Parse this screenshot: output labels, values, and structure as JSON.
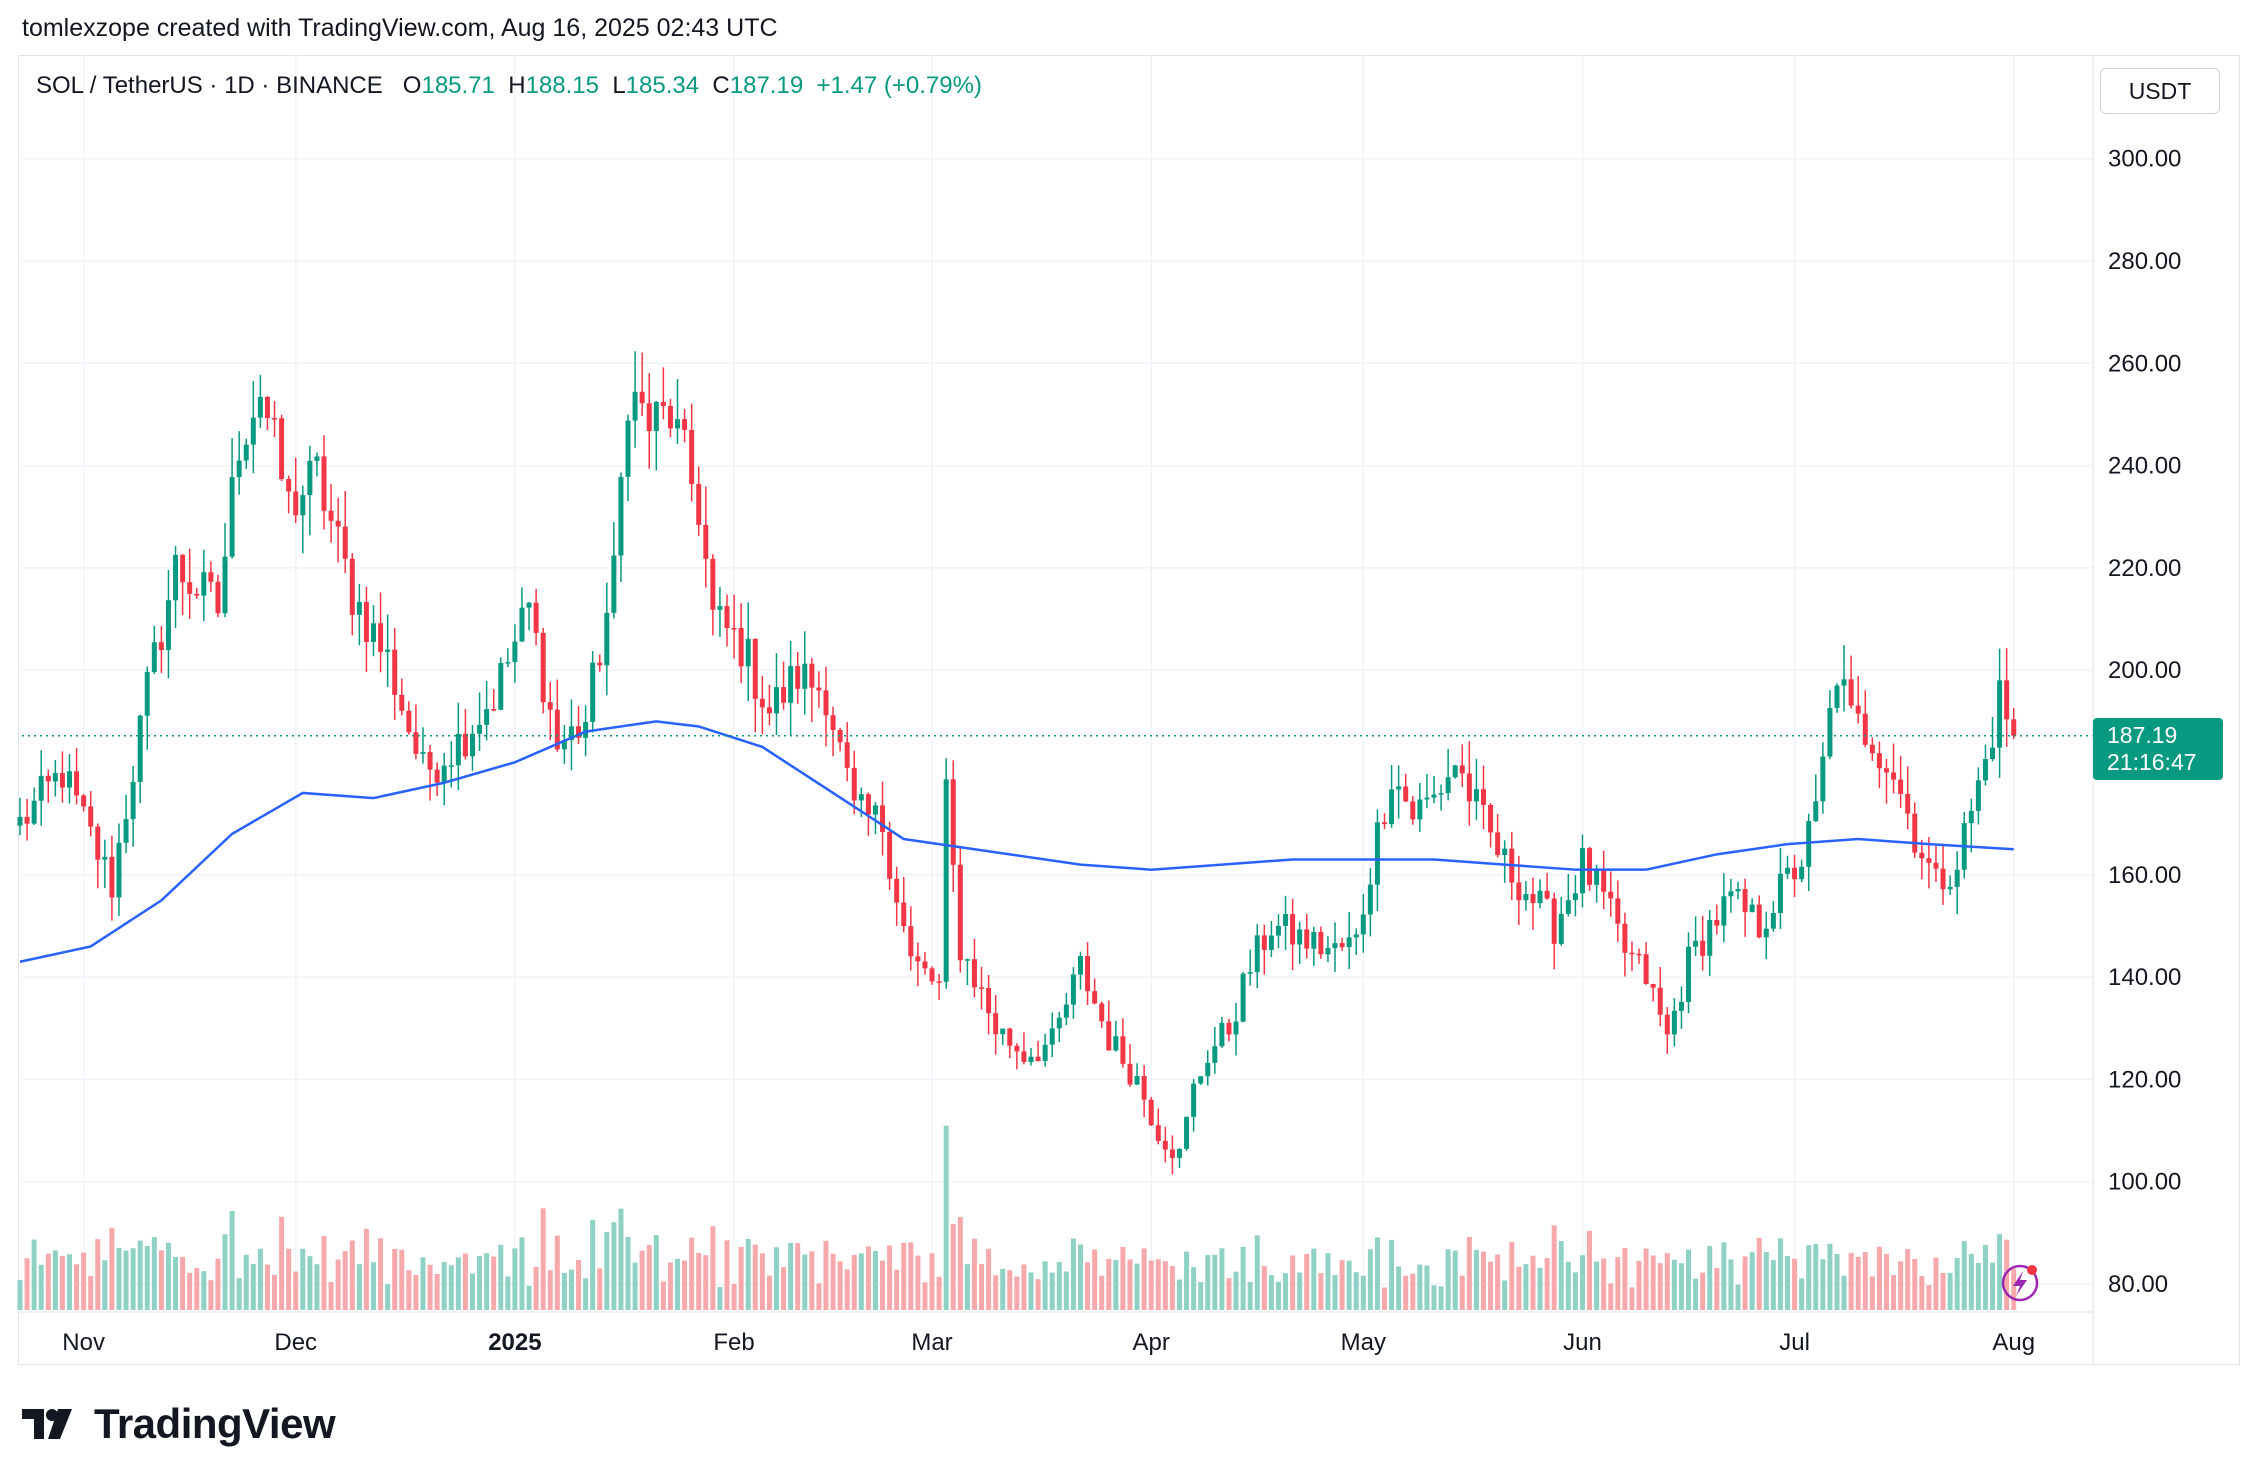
{
  "header_note": "tomlexzope created with TradingView.com, Aug 16, 2025 02:43 UTC",
  "legend": {
    "symbol": "SOL / TetherUS · 1D · BINANCE",
    "open_label": "O",
    "open": "185.71",
    "high_label": "H",
    "high": "188.15",
    "low_label": "L",
    "low": "185.34",
    "close_label": "C",
    "close": "187.19",
    "change": "+1.47 (+0.79%)"
  },
  "currency": "USDT",
  "price_tag": {
    "price": "187.19",
    "countdown": "21:16:47"
  },
  "brand": "TradingView",
  "colors": {
    "up": "#089981",
    "down": "#f23645",
    "ma": "#2962ff",
    "vol_up": "#8fd1c5",
    "vol_down": "#f7a8ab",
    "grid": "#f0f3fa"
  },
  "chart_data": {
    "type": "candlestick",
    "title": "SOL / TetherUS · 1D · BINANCE",
    "ylim": [
      75,
      315
    ],
    "yticks": [
      "300.00",
      "280.00",
      "260.00",
      "240.00",
      "220.00",
      "200.00",
      "160.00",
      "140.00",
      "120.00",
      "100.00",
      "80.00"
    ],
    "ytick_values": [
      300,
      280,
      260,
      240,
      220,
      200,
      160,
      140,
      120,
      100,
      80
    ],
    "xticks": [
      "Nov",
      "Dec",
      "2025",
      "Feb",
      "Mar",
      "Apr",
      "May",
      "Jun",
      "Jul",
      "Aug"
    ],
    "xtick_bold": [
      false,
      false,
      true,
      false,
      false,
      false,
      false,
      false,
      false,
      false
    ],
    "xtick_day_index": [
      9,
      39,
      70,
      101,
      129,
      160,
      190,
      221,
      251,
      282
    ],
    "start_date": "2024-10-23",
    "last_price": 187.19,
    "series": [
      {
        "name": "SOL/USDT daily close (approx.)",
        "close_points": [
          [
            0,
            170
          ],
          [
            6,
            180
          ],
          [
            13,
            158
          ],
          [
            18,
            196
          ],
          [
            22,
            220
          ],
          [
            28,
            212
          ],
          [
            31,
            245
          ],
          [
            34,
            255
          ],
          [
            38,
            232
          ],
          [
            42,
            238
          ],
          [
            47,
            215
          ],
          [
            52,
            202
          ],
          [
            57,
            180
          ],
          [
            62,
            186
          ],
          [
            67,
            195
          ],
          [
            72,
            212
          ],
          [
            76,
            185
          ],
          [
            80,
            190
          ],
          [
            84,
            218
          ],
          [
            86,
            255
          ],
          [
            89,
            248
          ],
          [
            92,
            250
          ],
          [
            96,
            232
          ],
          [
            98,
            210
          ],
          [
            102,
            205
          ],
          [
            106,
            192
          ],
          [
            110,
            199
          ],
          [
            114,
            196
          ],
          [
            118,
            172
          ],
          [
            122,
            170
          ],
          [
            126,
            143
          ],
          [
            130,
            138
          ],
          [
            131,
            175
          ],
          [
            133,
            146
          ],
          [
            135,
            140
          ],
          [
            138,
            130
          ],
          [
            142,
            125
          ],
          [
            146,
            127
          ],
          [
            150,
            142
          ],
          [
            154,
            128
          ],
          [
            158,
            120
          ],
          [
            161,
            110
          ],
          [
            164,
            105
          ],
          [
            166,
            118
          ],
          [
            168,
            125
          ],
          [
            171,
            130
          ],
          [
            174,
            142
          ],
          [
            177,
            150
          ],
          [
            182,
            147
          ],
          [
            186,
            145
          ],
          [
            189,
            147
          ],
          [
            192,
            168
          ],
          [
            194,
            180
          ],
          [
            197,
            172
          ],
          [
            200,
            175
          ],
          [
            203,
            182
          ],
          [
            207,
            170
          ],
          [
            210,
            162
          ],
          [
            213,
            157
          ],
          [
            217,
            150
          ],
          [
            221,
            162
          ],
          [
            224,
            155
          ],
          [
            227,
            145
          ],
          [
            230,
            140
          ],
          [
            233,
            128
          ],
          [
            236,
            143
          ],
          [
            239,
            150
          ],
          [
            242,
            155
          ],
          [
            246,
            150
          ],
          [
            249,
            157
          ],
          [
            252,
            163
          ],
          [
            254,
            172
          ],
          [
            257,
            200
          ],
          [
            259,
            190
          ],
          [
            262,
            187
          ],
          [
            265,
            180
          ],
          [
            268,
            168
          ],
          [
            271,
            158
          ],
          [
            274,
            163
          ],
          [
            278,
            182
          ],
          [
            280,
            195
          ],
          [
            282,
            187
          ]
        ]
      },
      {
        "name": "Moving average",
        "points": [
          [
            0,
            143
          ],
          [
            10,
            146
          ],
          [
            20,
            155
          ],
          [
            30,
            168
          ],
          [
            40,
            176
          ],
          [
            50,
            175
          ],
          [
            60,
            178
          ],
          [
            70,
            182
          ],
          [
            80,
            188
          ],
          [
            90,
            190
          ],
          [
            96,
            189
          ],
          [
            105,
            185
          ],
          [
            115,
            176
          ],
          [
            125,
            167
          ],
          [
            140,
            164
          ],
          [
            150,
            162
          ],
          [
            160,
            161
          ],
          [
            170,
            162
          ],
          [
            180,
            163
          ],
          [
            190,
            163
          ],
          [
            200,
            163
          ],
          [
            210,
            162
          ],
          [
            220,
            161
          ],
          [
            230,
            161
          ],
          [
            240,
            164
          ],
          [
            250,
            166
          ],
          [
            260,
            167
          ],
          [
            270,
            166
          ],
          [
            282,
            165
          ]
        ]
      }
    ]
  }
}
